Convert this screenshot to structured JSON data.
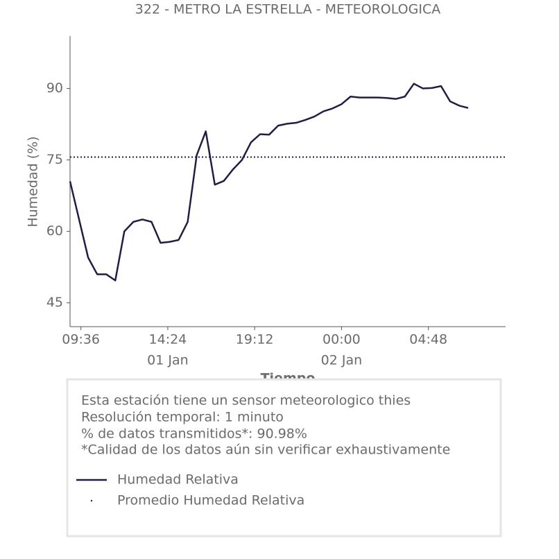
{
  "chart_data": {
    "type": "line",
    "title": "322 - METRO LA ESTRELLA - METEOROLOGICA",
    "xlabel": "Tiempo",
    "ylabel": "Humedad (%)",
    "x": [
      "01 Jan 09:00",
      "01 Jan 09:30",
      "01 Jan 10:00",
      "01 Jan 10:30",
      "01 Jan 11:00",
      "01 Jan 11:30",
      "01 Jan 12:00",
      "01 Jan 12:30",
      "01 Jan 13:00",
      "01 Jan 13:30",
      "01 Jan 14:00",
      "01 Jan 14:30",
      "01 Jan 15:00",
      "01 Jan 15:30",
      "01 Jan 16:00",
      "01 Jan 16:30",
      "01 Jan 17:00",
      "01 Jan 17:30",
      "01 Jan 18:00",
      "01 Jan 18:30",
      "01 Jan 19:00",
      "01 Jan 19:30",
      "01 Jan 20:00",
      "01 Jan 20:30",
      "01 Jan 21:00",
      "01 Jan 21:30",
      "01 Jan 22:00",
      "01 Jan 22:30",
      "01 Jan 23:00",
      "01 Jan 23:30",
      "02 Jan 00:00",
      "02 Jan 00:30",
      "02 Jan 01:00",
      "02 Jan 01:30",
      "02 Jan 02:00",
      "02 Jan 02:30",
      "02 Jan 03:00",
      "02 Jan 03:30",
      "02 Jan 04:00",
      "02 Jan 04:30",
      "02 Jan 05:00",
      "02 Jan 05:30",
      "02 Jan 06:00",
      "02 Jan 06:30",
      "02 Jan 07:00"
    ],
    "series": [
      {
        "name": "Humedad Relativa",
        "color": "#1f1f45",
        "values": [
          70.5,
          62.5,
          54.5,
          51,
          51,
          49.7,
          60,
          62,
          62.5,
          62,
          57.6,
          57.8,
          58.2,
          62,
          76,
          81,
          69.8,
          70.6,
          73,
          75,
          78.7,
          80.4,
          80.3,
          82.2,
          82.6,
          82.8,
          83.4,
          84.1,
          85.2,
          85.8,
          86.7,
          88.3,
          88.1,
          88.1,
          88.1,
          88,
          87.8,
          88.3,
          91,
          90,
          90.1,
          90.5,
          87.3,
          86.4,
          85.9
        ]
      }
    ],
    "mean_line": {
      "name": "Promedio Humedad Relativa",
      "color": "#1f1f45",
      "value": 75.6
    },
    "xlim": [
      "01 Jan 09:00",
      "02 Jan 09:04"
    ],
    "xticks": [
      {
        "value": "01 Jan 09:36",
        "label": "09:36"
      },
      {
        "value": "01 Jan 14:24",
        "label": "14:24"
      },
      {
        "value": "01 Jan 19:12",
        "label": "19:12"
      },
      {
        "value": "02 Jan 00:00",
        "label": "00:00"
      },
      {
        "value": "02 Jan 04:48",
        "label": "04:48"
      }
    ],
    "xtick_dates": [
      {
        "value": "01 Jan 14:24",
        "label": "01 Jan"
      },
      {
        "value": "02 Jan 00:00",
        "label": "02 Jan"
      }
    ],
    "ylim": [
      40,
      101
    ],
    "yticks": [
      45,
      60,
      75,
      90
    ],
    "notes": [
      "Esta estación tiene un sensor meteorologico thies",
      "Resolución temporal: 1 minuto",
      "% de datos transmitidos*: 90.98%",
      "*Calidad de los datos aún sin verificar exhaustivamente"
    ]
  }
}
